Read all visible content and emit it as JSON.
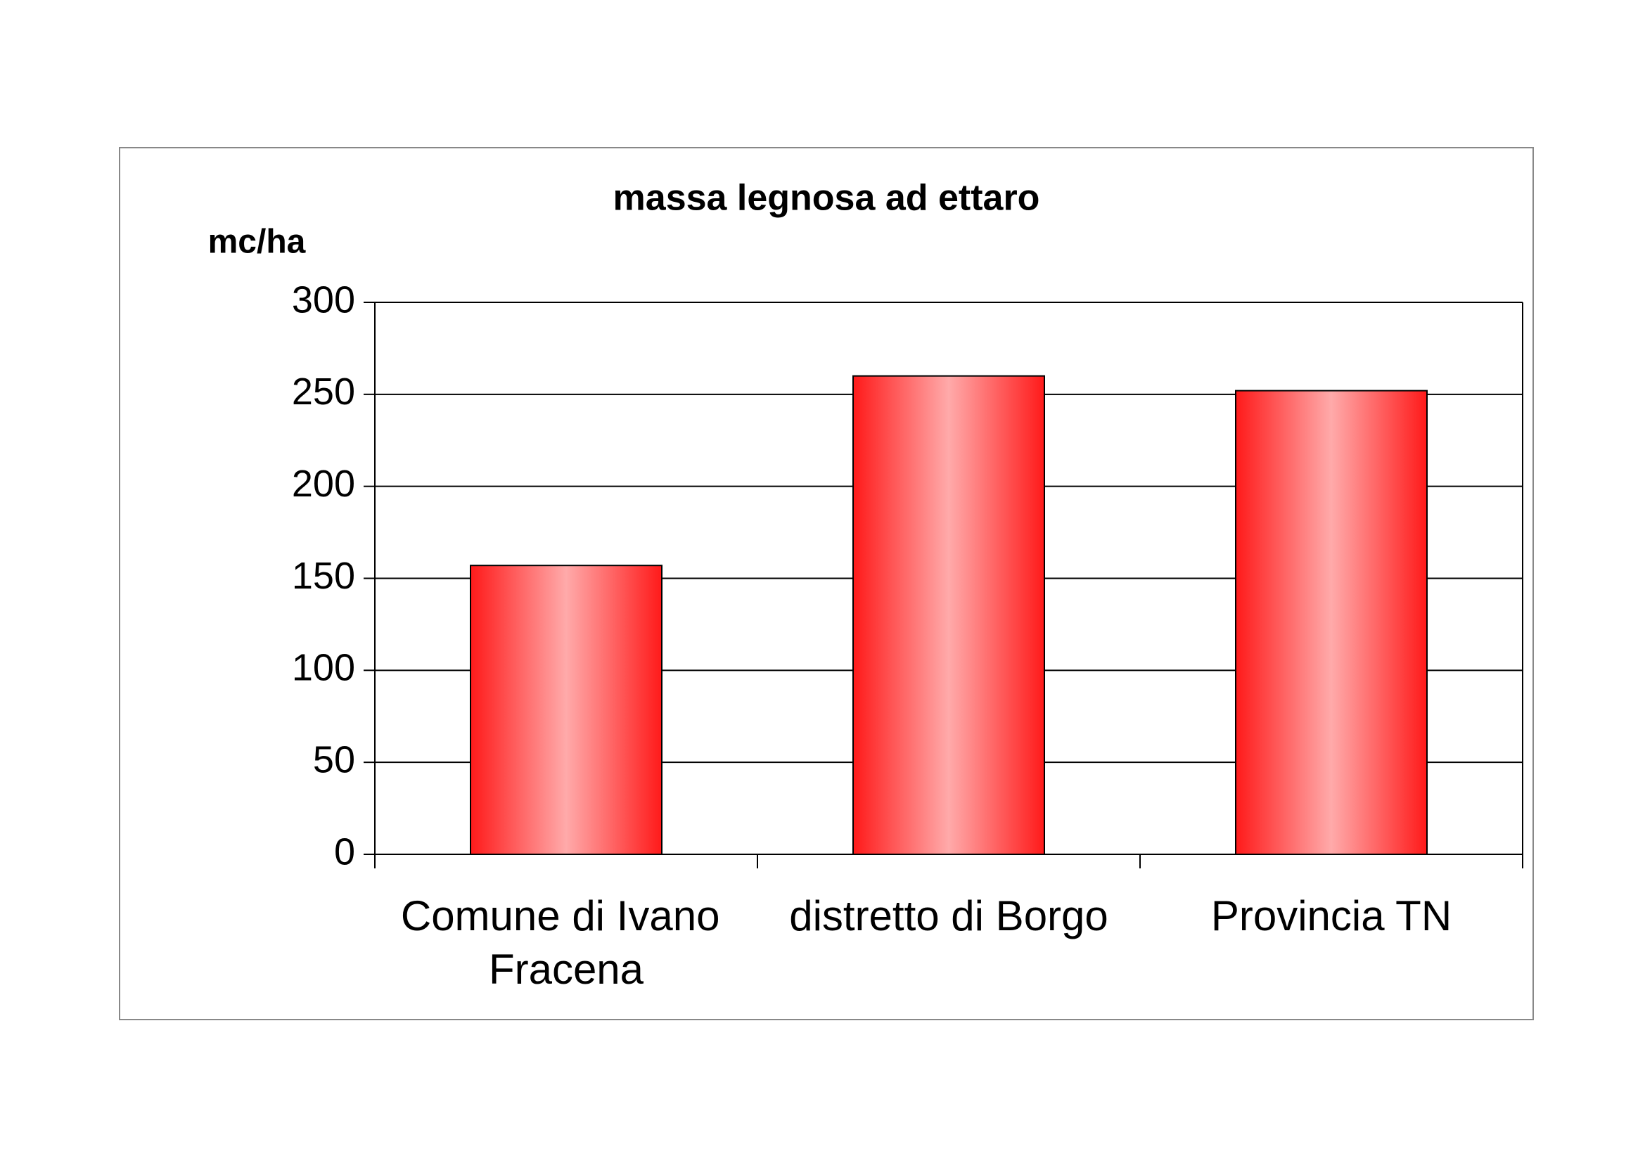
{
  "chart_data": {
    "type": "bar",
    "title": "massa legnosa ad ettaro",
    "y_label": "mc/ha",
    "categories": [
      "Comune di Ivano Fracena",
      "distretto di Borgo",
      "Provincia TN"
    ],
    "values": [
      157,
      260,
      252
    ],
    "color": "#ff1a1a",
    "ylim": [
      0,
      300
    ],
    "yticks": [
      0,
      50,
      100,
      150,
      200,
      250,
      300
    ],
    "grid": true
  }
}
